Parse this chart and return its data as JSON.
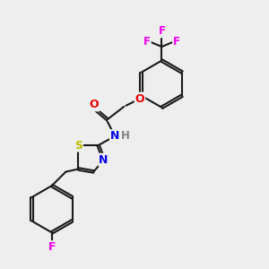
{
  "bg_color": "#eeeeee",
  "bond_color": "#1a1a1a",
  "bond_width": 1.5,
  "atom_colors": {
    "H": "#808080",
    "N": "#0000ee",
    "O": "#ee0000",
    "S": "#bbbb00",
    "F": "#ee00ee"
  },
  "font_size": 8.5,
  "xlim": [
    0,
    10
  ],
  "ylim": [
    0,
    10
  ],
  "figsize": [
    3.0,
    3.0
  ],
  "dpi": 100
}
